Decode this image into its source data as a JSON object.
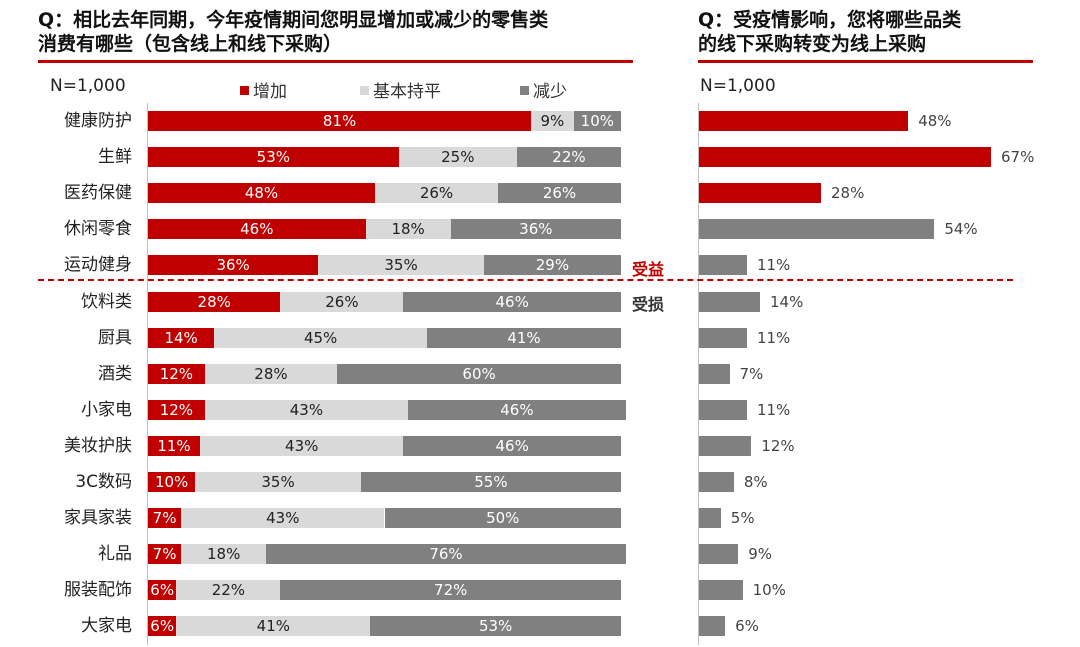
{
  "left_panel": {
    "title_line1": "Q：相比去年同期，今年疫情期间您明显增加或减少的零售类",
    "title_line2": "消费有哪些（包含线上和线下采购）",
    "sample_size": "N=1,000",
    "gain_label": "受益",
    "loss_label": "受损"
  },
  "right_panel": {
    "title_line1": "Q：受疫情影响，您将哪些品类",
    "title_line2": "的线下采购转变为线上采购",
    "sample_size": "N=1,000"
  },
  "colors": {
    "increase": "#c00000",
    "flat": "#d9d9d9",
    "decrease": "#808080",
    "accent": "#c00000"
  },
  "chart_data": [
    {
      "type": "bar",
      "orientation": "horizontal",
      "stacked": true,
      "title": "Q：相比去年同期，今年疫情期间您明显增加或减少的零售类消费有哪些（包含线上和线下采购）",
      "categories": [
        "健康防护",
        "生鲜",
        "医药保健",
        "休闲零食",
        "运动健身",
        "饮料类",
        "厨具",
        "酒类",
        "小家电",
        "美妆护肤",
        "3C数码",
        "家具家装",
        "礼品",
        "服装配饰",
        "大家电"
      ],
      "series": [
        {
          "name": "增加",
          "values": [
            81,
            53,
            48,
            46,
            36,
            28,
            14,
            12,
            12,
            11,
            10,
            7,
            7,
            6,
            6
          ]
        },
        {
          "name": "基本持平",
          "values": [
            9,
            25,
            26,
            18,
            35,
            26,
            45,
            28,
            43,
            43,
            35,
            43,
            18,
            22,
            41
          ]
        },
        {
          "name": "减少",
          "values": [
            10,
            22,
            26,
            36,
            29,
            46,
            41,
            60,
            46,
            46,
            55,
            50,
            76,
            72,
            53
          ]
        }
      ],
      "value_suffix": "%",
      "xlim": [
        0,
        100
      ],
      "legend": "top"
    },
    {
      "type": "bar",
      "orientation": "horizontal",
      "title": "Q：受疫情影响，您将哪些品类的线下采购转变为线上采购",
      "categories": [
        "健康防护",
        "生鲜",
        "医药保健",
        "休闲零食",
        "运动健身",
        "饮料类",
        "厨具",
        "酒类",
        "小家电",
        "美妆护肤",
        "3C数码",
        "家具家装",
        "礼品",
        "服装配饰",
        "大家电"
      ],
      "values": [
        48,
        67,
        28,
        54,
        11,
        14,
        11,
        7,
        11,
        12,
        8,
        5,
        9,
        10,
        6
      ],
      "highlighted": [
        "健康防护",
        "生鲜",
        "医药保健"
      ],
      "value_suffix": "%",
      "xlim": [
        0,
        100
      ]
    }
  ]
}
